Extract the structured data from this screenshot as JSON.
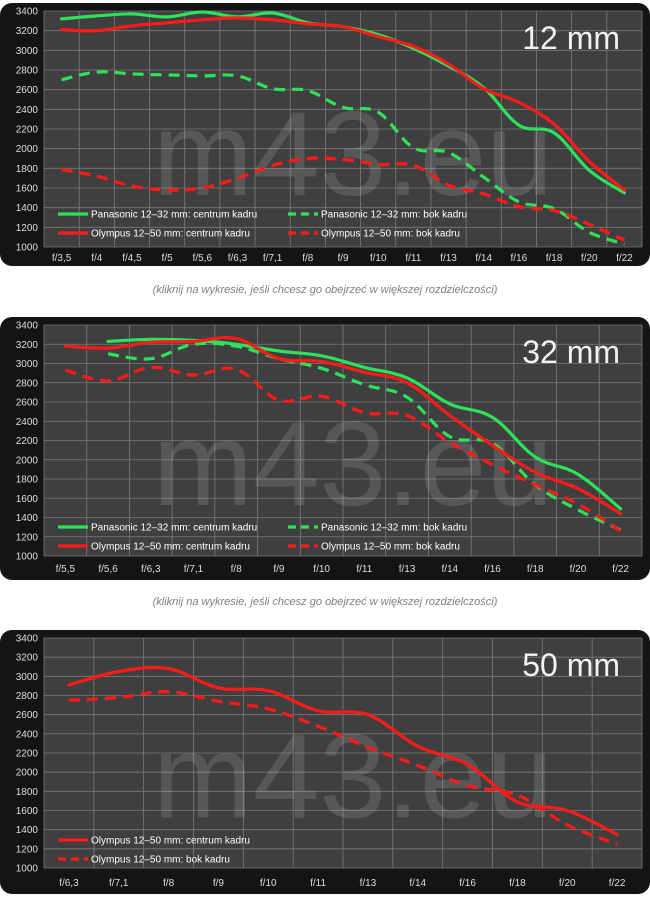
{
  "watermark": "m43.eu",
  "caption": "(kliknij na wykresie, jeśli chcesz go obejrzeć w większej rozdzielczości)",
  "colors": {
    "panasonic": "#2ee05a",
    "olympus": "#ff1a1a",
    "background": "#3f3f3f",
    "grid": "#7a7a7a"
  },
  "chart_data": [
    {
      "type": "line",
      "title": "12 mm",
      "categories": [
        "f/3,5",
        "f/4",
        "f/4,5",
        "f/5",
        "f/5,6",
        "f/6,3",
        "f/7,1",
        "f/8",
        "f/9",
        "f/10",
        "f/11",
        "f/13",
        "f/14",
        "f/16",
        "f/18",
        "f/20",
        "f/22"
      ],
      "ylim": [
        1000,
        3400
      ],
      "yticks": [
        1000,
        1200,
        1400,
        1600,
        1800,
        2000,
        2200,
        2400,
        2600,
        2800,
        3000,
        3200,
        3400
      ],
      "grid": true,
      "legend_position": "bottom-left",
      "series": [
        {
          "name": "Panasonic 12–32 mm: centrum kadru",
          "color": "#2ee05a",
          "style": "solid",
          "values": [
            3320,
            3350,
            3370,
            3340,
            3390,
            3340,
            3380,
            3280,
            3240,
            3160,
            3020,
            2840,
            2620,
            2240,
            2160,
            1780,
            1550
          ]
        },
        {
          "name": "Panasonic 12–32 mm: bok kadru",
          "color": "#2ee05a",
          "style": "dashed",
          "values": [
            2700,
            2780,
            2760,
            2750,
            2740,
            2740,
            2610,
            2590,
            2420,
            2370,
            2010,
            1960,
            1710,
            1460,
            1390,
            1150,
            1030
          ]
        },
        {
          "name": "Olympus 12–50 mm: centrum kadru",
          "color": "#ff1a1a",
          "style": "solid",
          "values": [
            3210,
            3200,
            3250,
            3280,
            3310,
            3330,
            3310,
            3270,
            3240,
            3140,
            3040,
            2860,
            2610,
            2470,
            2250,
            1870,
            1580
          ]
        },
        {
          "name": "Olympus 12–50 mm: bok kadru",
          "color": "#ff1a1a",
          "style": "dashed",
          "values": [
            1790,
            1720,
            1620,
            1580,
            1600,
            1700,
            1830,
            1900,
            1890,
            1840,
            1830,
            1630,
            1540,
            1410,
            1370,
            1230,
            1070
          ]
        }
      ]
    },
    {
      "type": "line",
      "title": "32 mm",
      "categories": [
        "f/5,5",
        "f/5,6",
        "f/6,3",
        "f/7,1",
        "f/8",
        "f/9",
        "f/10",
        "f/11",
        "f/13",
        "f/14",
        "f/16",
        "f/18",
        "f/20",
        "f/22"
      ],
      "ylim": [
        1000,
        3400
      ],
      "yticks": [
        1000,
        1200,
        1400,
        1600,
        1800,
        2000,
        2200,
        2400,
        2600,
        2800,
        3000,
        3200,
        3400
      ],
      "grid": true,
      "legend_position": "bottom-left",
      "series": [
        {
          "name": "Panasonic 12–32 mm: centrum kadru",
          "color": "#2ee05a",
          "style": "solid",
          "values": [
            null,
            3230,
            3250,
            3240,
            3200,
            3130,
            3080,
            2960,
            2850,
            2580,
            2440,
            2030,
            1850,
            1490
          ]
        },
        {
          "name": "Panasonic 12–32 mm: bok kadru",
          "color": "#2ee05a",
          "style": "dashed",
          "values": [
            null,
            3100,
            3050,
            3200,
            3180,
            3050,
            2950,
            2780,
            2650,
            2240,
            2170,
            1740,
            1480,
            1270
          ]
        },
        {
          "name": "Olympus 12–50 mm: centrum kadru",
          "color": "#ff1a1a",
          "style": "solid",
          "values": [
            3180,
            3160,
            3220,
            3230,
            3260,
            3050,
            3020,
            2910,
            2800,
            2460,
            2150,
            1870,
            1700,
            1440
          ]
        },
        {
          "name": "Olympus 12–50 mm: bok kadru",
          "color": "#ff1a1a",
          "style": "dashed",
          "values": [
            2930,
            2820,
            2960,
            2880,
            2940,
            2620,
            2660,
            2490,
            2460,
            2180,
            1950,
            1740,
            1540,
            1260
          ]
        }
      ]
    },
    {
      "type": "line",
      "title": "50 mm",
      "categories": [
        "f/6,3",
        "f/7,1",
        "f/8",
        "f/9",
        "f/10",
        "f/11",
        "f/13",
        "f/14",
        "f/16",
        "f/18",
        "f/20",
        "f/22"
      ],
      "ylim": [
        1000,
        3400
      ],
      "yticks": [
        1000,
        1200,
        1400,
        1600,
        1800,
        2000,
        2200,
        2400,
        2600,
        2800,
        3000,
        3200,
        3400
      ],
      "grid": true,
      "legend_position": "bottom-left",
      "series": [
        {
          "name": "Olympus 12–50 mm: centrum kadru",
          "color": "#ff1a1a",
          "style": "solid",
          "values": [
            2910,
            3050,
            3080,
            2880,
            2850,
            2640,
            2600,
            2270,
            2080,
            1690,
            1600,
            1350
          ]
        },
        {
          "name": "Olympus 12–50 mm: bok kadru",
          "color": "#ff1a1a",
          "style": "dashed",
          "values": [
            2750,
            2780,
            2840,
            2740,
            2660,
            2480,
            2260,
            2070,
            1860,
            1760,
            1450,
            1250
          ]
        }
      ]
    }
  ]
}
